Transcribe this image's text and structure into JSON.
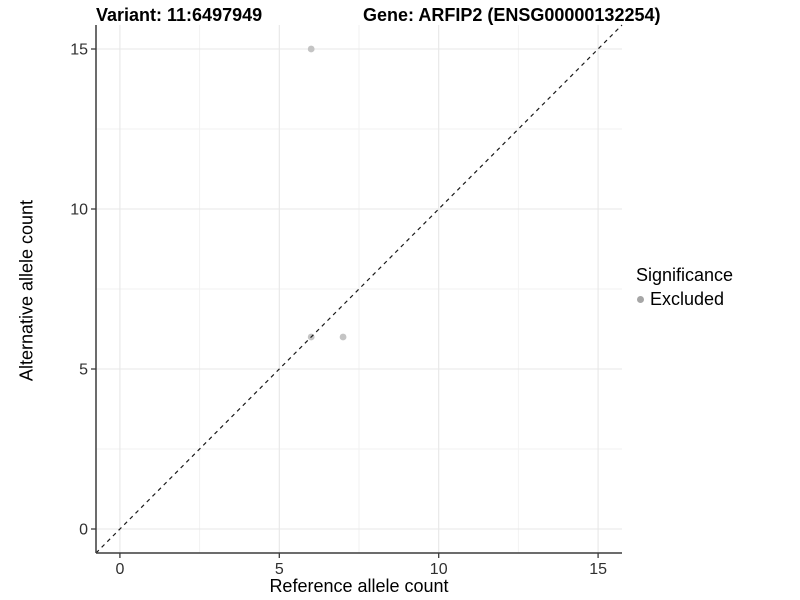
{
  "chart_data": {
    "type": "scatter",
    "title_left": "Variant: 11:6497949",
    "title_right": "Gene: ARFIP2 (ENSG00000132254)",
    "xlabel": "Reference allele count",
    "ylabel": "Alternative allele count",
    "xlim": [
      -0.75,
      15.75
    ],
    "ylim": [
      -0.75,
      15.75
    ],
    "x_ticks": [
      0,
      5,
      10,
      15
    ],
    "y_ticks": [
      0,
      5,
      10,
      15
    ],
    "x_minor_ticks": [
      2.5,
      7.5,
      12.5
    ],
    "y_minor_ticks": [
      2.5,
      7.5,
      12.5
    ],
    "grid": "major and minor gridlines on white panel",
    "identity_line": {
      "style": "dashed",
      "slope": 1,
      "intercept": 0
    },
    "series": [
      {
        "name": "Excluded",
        "points": [
          {
            "x": 6,
            "y": 15
          },
          {
            "x": 6,
            "y": 6
          },
          {
            "x": 7,
            "y": 6
          }
        ]
      }
    ],
    "legend": {
      "title": "Significance",
      "position": "right",
      "items": [
        {
          "label": "Excluded",
          "swatch": "dot"
        }
      ]
    },
    "colors": {
      "point": "#c4c4c4",
      "legend_dot": "#a6a6a6",
      "grid_major": "#e7e7e7",
      "grid_minor": "#f2f2f2",
      "axis_line": "#3c3c3c",
      "identity_line": "#1a1a1a",
      "tick_label": "#303030"
    }
  }
}
